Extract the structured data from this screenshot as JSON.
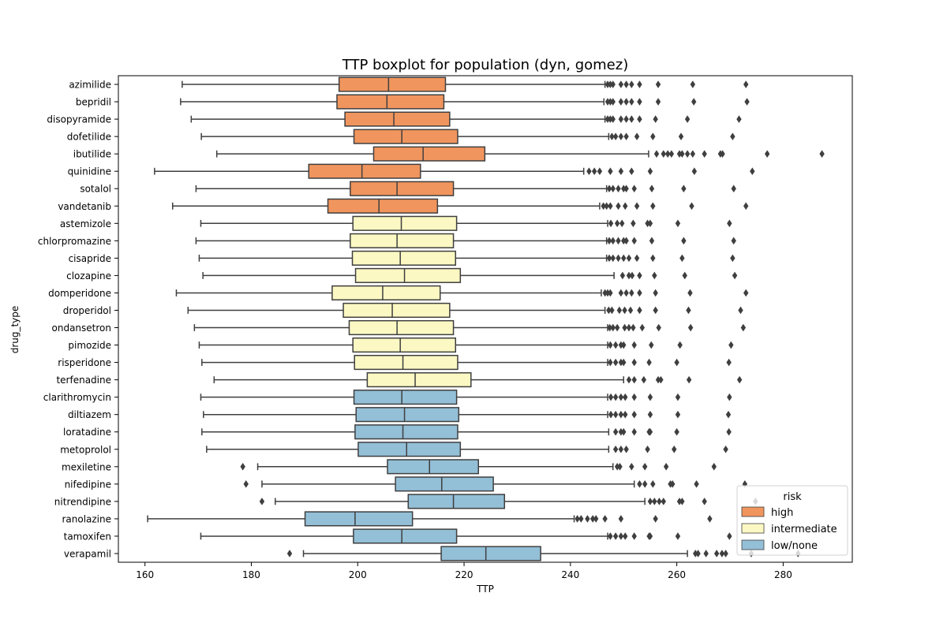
{
  "chart_data": {
    "type": "boxplot",
    "orientation": "horizontal",
    "title": "TTP boxplot for population (dyn, gomez)",
    "xlabel": "TTP",
    "ylabel": "drug_type",
    "xlim": [
      155,
      293
    ],
    "xticks": [
      160,
      180,
      200,
      220,
      240,
      260,
      280
    ],
    "legend": {
      "title": "risk",
      "placement": "lower-right",
      "entries": [
        {
          "label": "high",
          "color": "#f0955e"
        },
        {
          "label": "intermediate",
          "color": "#fbf8c3"
        },
        {
          "label": "low/none",
          "color": "#93bfd7"
        }
      ]
    },
    "series_colors": {
      "high": "#f0955e",
      "intermediate": "#fbf8c3",
      "low/none": "#93bfd7"
    },
    "boxes": [
      {
        "label": "azimilide",
        "risk": "high",
        "whislo": 167,
        "q1": 196.5,
        "median": 205.8,
        "q3": 216.5,
        "whishi": 246.5,
        "fliers": [
          247,
          247.5,
          248,
          249.5,
          250.5,
          251.5,
          253,
          256.5,
          263,
          273
        ]
      },
      {
        "label": "bepridil",
        "risk": "high",
        "whislo": 166.7,
        "q1": 196.1,
        "median": 205.5,
        "q3": 216.2,
        "whishi": 246.3,
        "fliers": [
          247,
          247.5,
          248,
          249.5,
          250.5,
          251.5,
          253,
          256.5,
          263.2,
          273.2
        ]
      },
      {
        "label": "disopyramide",
        "risk": "high",
        "whislo": 168.7,
        "q1": 197.6,
        "median": 206.8,
        "q3": 217.3,
        "whishi": 246.5,
        "fliers": [
          247,
          247.5,
          248,
          249.5,
          250.5,
          251.5,
          253,
          256,
          262,
          271.7
        ]
      },
      {
        "label": "dofetilide",
        "risk": "high",
        "whislo": 170.6,
        "q1": 199.3,
        "median": 208.3,
        "q3": 218.8,
        "whishi": 247.2,
        "fliers": [
          247.8,
          248.5,
          249.5,
          250.5,
          252.5,
          255.5,
          260.8,
          270.5
        ]
      },
      {
        "label": "ibutilide",
        "risk": "high",
        "whislo": 173.5,
        "q1": 203,
        "median": 212.3,
        "q3": 223.9,
        "whishi": 254.7,
        "fliers": [
          256.2,
          257.5,
          258.3,
          259,
          260.5,
          261,
          262,
          263,
          265.2,
          268.2,
          268.6,
          277,
          287.3
        ]
      },
      {
        "label": "quinidine",
        "risk": "high",
        "whislo": 161.8,
        "q1": 190.8,
        "median": 200.8,
        "q3": 211.8,
        "whishi": 242.5,
        "fliers": [
          243.5,
          244.5,
          245.5,
          247.5,
          249.5,
          251.5,
          255,
          263.3,
          274.2
        ]
      },
      {
        "label": "sotalol",
        "risk": "high",
        "whislo": 169.6,
        "q1": 198.6,
        "median": 207.4,
        "q3": 218,
        "whishi": 246.8,
        "fliers": [
          247.3,
          248,
          249,
          250,
          250.5,
          252,
          255.3,
          261.3,
          270.7
        ]
      },
      {
        "label": "vandetanib",
        "risk": "high",
        "whislo": 165.2,
        "q1": 194.4,
        "median": 204,
        "q3": 215,
        "whishi": 245.5,
        "fliers": [
          246.2,
          246.8,
          247.5,
          249,
          250.3,
          252.5,
          255.5,
          262.8,
          273
        ]
      },
      {
        "label": "astemizole",
        "risk": "intermediate",
        "whislo": 170.5,
        "q1": 199.1,
        "median": 208.2,
        "q3": 218.6,
        "whishi": 247,
        "fliers": [
          247.6,
          248.8,
          249.7,
          251.8,
          254.5,
          255,
          260.2,
          269.9
        ]
      },
      {
        "label": "chlorpromazine",
        "risk": "intermediate",
        "whislo": 169.6,
        "q1": 198.6,
        "median": 207.4,
        "q3": 218,
        "whishi": 246.8,
        "fliers": [
          247.3,
          248,
          249,
          250,
          250.5,
          252,
          255.3,
          261.3,
          270.7
        ]
      },
      {
        "label": "cisapride",
        "risk": "intermediate",
        "whislo": 170.2,
        "q1": 199,
        "median": 208,
        "q3": 218.4,
        "whishi": 246.8,
        "fliers": [
          247.3,
          248,
          249,
          250,
          251,
          252.5,
          255.5,
          261,
          270.5
        ]
      },
      {
        "label": "clozapine",
        "risk": "intermediate",
        "whislo": 170.9,
        "q1": 199.6,
        "median": 208.8,
        "q3": 219.3,
        "whishi": 248.2,
        "fliers": [
          249.8,
          251,
          251.6,
          253,
          255.8,
          261.5,
          270.9
        ]
      },
      {
        "label": "domperidone",
        "risk": "intermediate",
        "whislo": 165.9,
        "q1": 195.2,
        "median": 204.7,
        "q3": 215.5,
        "whishi": 245.8,
        "fliers": [
          246.5,
          247,
          247.5,
          249.5,
          250.5,
          251.5,
          253,
          256,
          262.5,
          273
        ]
      },
      {
        "label": "droperidol",
        "risk": "intermediate",
        "whislo": 168.1,
        "q1": 197.3,
        "median": 206.5,
        "q3": 217.3,
        "whishi": 246.5,
        "fliers": [
          247.2,
          247.8,
          249.2,
          250.2,
          251.3,
          253,
          256,
          262.2,
          272
        ]
      },
      {
        "label": "ondansetron",
        "risk": "intermediate",
        "whislo": 169.3,
        "q1": 198.4,
        "median": 207.4,
        "q3": 218,
        "whishi": 247,
        "fliers": [
          247.4,
          248,
          248.8,
          250.2,
          251,
          251.8,
          253.5,
          256.6,
          262.6,
          272.5
        ]
      },
      {
        "label": "pimozide",
        "risk": "intermediate",
        "whislo": 170.2,
        "q1": 199.1,
        "median": 208,
        "q3": 218.4,
        "whishi": 247,
        "fliers": [
          247.5,
          248.5,
          249.5,
          250,
          252,
          255.2,
          260.6,
          270.2
        ]
      },
      {
        "label": "risperidone",
        "risk": "intermediate",
        "whislo": 170.7,
        "q1": 199.4,
        "median": 208.5,
        "q3": 218.8,
        "whishi": 247,
        "fliers": [
          247.5,
          248.5,
          249.5,
          250,
          252,
          254.8,
          260,
          269.8
        ]
      },
      {
        "label": "terfenadine",
        "risk": "intermediate",
        "whislo": 173,
        "q1": 201.8,
        "median": 210.8,
        "q3": 221.3,
        "whishi": 250,
        "fliers": [
          251,
          252,
          253.8,
          256.5,
          257,
          262.3,
          271.8
        ]
      },
      {
        "label": "clarithromycin",
        "risk": "low/none",
        "whislo": 170.5,
        "q1": 199.3,
        "median": 208.3,
        "q3": 218.6,
        "whishi": 247,
        "fliers": [
          247.6,
          248.5,
          249.5,
          250.3,
          252,
          255,
          260.2,
          269.9
        ]
      },
      {
        "label": "diltiazem",
        "risk": "low/none",
        "whislo": 171,
        "q1": 199.7,
        "median": 208.8,
        "q3": 219,
        "whishi": 247,
        "fliers": [
          247.6,
          248.5,
          249.5,
          250.3,
          252,
          255,
          260.2,
          269.7
        ]
      },
      {
        "label": "loratadine",
        "risk": "low/none",
        "whislo": 170.7,
        "q1": 199.5,
        "median": 208.5,
        "q3": 218.8,
        "whishi": 247.2,
        "fliers": [
          248.5,
          249.5,
          250,
          252,
          254.8,
          255,
          260,
          269.8
        ]
      },
      {
        "label": "metoprolol",
        "risk": "low/none",
        "whislo": 171.6,
        "q1": 200.1,
        "median": 209.2,
        "q3": 219.3,
        "whishi": 247.2,
        "fliers": [
          248.5,
          249.5,
          250.5,
          254.5,
          259.5,
          269.2
        ]
      },
      {
        "label": "mexiletine",
        "risk": "low/none",
        "whislo": 181.2,
        "q1": 205.6,
        "median": 213.5,
        "q3": 222.7,
        "whishi": 248,
        "fliers": [
          178.4,
          248.8,
          249.3,
          251.5,
          254,
          258,
          267
        ]
      },
      {
        "label": "nifedipine",
        "risk": "low/none",
        "whislo": 182,
        "q1": 207.1,
        "median": 215.8,
        "q3": 225.5,
        "whishi": 252,
        "fliers": [
          179,
          253,
          254,
          255.5,
          258.8,
          259.2,
          263.7,
          272.8
        ]
      },
      {
        "label": "nitrendipine",
        "risk": "low/none",
        "whislo": 184.5,
        "q1": 209.5,
        "median": 218,
        "q3": 227.6,
        "whishi": 254,
        "fliers": [
          182,
          255,
          255.8,
          256.7,
          257.5,
          260.5,
          261,
          265.2,
          274.8
        ]
      },
      {
        "label": "ranolazine",
        "risk": "low/none",
        "whislo": 160.5,
        "q1": 190.1,
        "median": 199.5,
        "q3": 210.3,
        "whishi": 240.7,
        "fliers": [
          241.3,
          242,
          243.2,
          244.2,
          244.8,
          246.5,
          249.5,
          256,
          266.2
        ]
      },
      {
        "label": "tamoxifen",
        "risk": "low/none",
        "whislo": 170.5,
        "q1": 199.2,
        "median": 208.3,
        "q3": 218.6,
        "whishi": 247,
        "fliers": [
          247.5,
          248.5,
          249.5,
          250.3,
          252,
          254.8,
          255,
          260.2,
          269.9
        ]
      },
      {
        "label": "verapamil",
        "risk": "low/none",
        "whislo": 189.8,
        "q1": 215.7,
        "median": 224.1,
        "q3": 234.4,
        "whishi": 262,
        "fliers": [
          187.2,
          263.5,
          264,
          265.5,
          267.5,
          268.5,
          269.2,
          274,
          282.8
        ]
      }
    ]
  }
}
